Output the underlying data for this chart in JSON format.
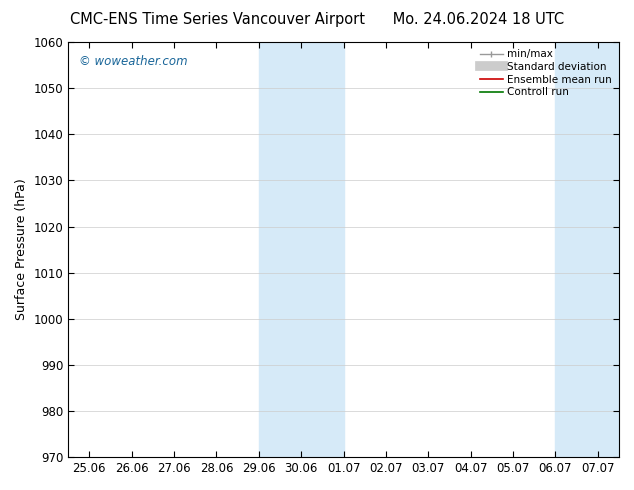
{
  "title_left": "CMC-ENS Time Series Vancouver Airport",
  "title_right": "Mo. 24.06.2024 18 UTC",
  "ylabel": "Surface Pressure (hPa)",
  "ylim": [
    970,
    1060
  ],
  "yticks": [
    970,
    980,
    990,
    1000,
    1010,
    1020,
    1030,
    1040,
    1050,
    1060
  ],
  "xlabels": [
    "25.06",
    "26.06",
    "27.06",
    "28.06",
    "29.06",
    "30.06",
    "01.07",
    "02.07",
    "03.07",
    "04.07",
    "05.07",
    "06.07",
    "07.07"
  ],
  "xvalues": [
    0,
    1,
    2,
    3,
    4,
    5,
    6,
    7,
    8,
    9,
    10,
    11,
    12
  ],
  "shaded_bands": [
    {
      "xmin": 4,
      "xmax": 6
    },
    {
      "xmin": 11,
      "xmax": 12.5
    }
  ],
  "shaded_color": "#d6eaf8",
  "watermark": "© woweather.com",
  "watermark_color": "#1a6699",
  "background_color": "#ffffff",
  "grid_color": "#cccccc",
  "title_fontsize": 10.5,
  "ylabel_fontsize": 9,
  "tick_fontsize": 8.5,
  "legend_fontsize": 7.5
}
